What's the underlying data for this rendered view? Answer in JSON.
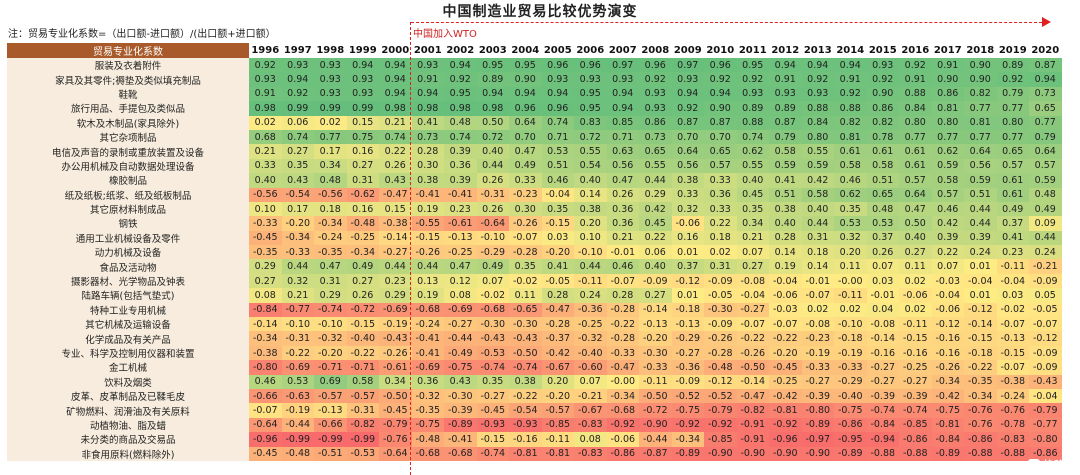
{
  "title": "中国制造业贸易比较优势演变",
  "note": "注：贸易专业化系数=（出口额-进口额）/(出口额+进口额）",
  "wto_label": "中国加入WTO",
  "watermark": "格隆汇",
  "header": {
    "category": "贸易专业化系数",
    "years": [
      "1996",
      "1997",
      "1998",
      "1999",
      "2000",
      "2001",
      "2002",
      "2003",
      "2004",
      "2005",
      "2006",
      "2007",
      "2008",
      "2009",
      "2010",
      "2011",
      "2012",
      "2013",
      "2014",
      "2015",
      "2016",
      "2017",
      "2018",
      "2019",
      "2020"
    ]
  },
  "rows": [
    {
      "name": "服装及衣着附件",
      "values": [
        "0.92",
        "0.93",
        "0.93",
        "0.94",
        "0.94",
        "0.93",
        "0.94",
        "0.95",
        "0.95",
        "0.96",
        "0.96",
        "0.97",
        "0.96",
        "0.97",
        "0.96",
        "0.95",
        "0.94",
        "0.94",
        "0.94",
        "0.93",
        "0.92",
        "0.91",
        "0.90",
        "0.89",
        "0.87"
      ]
    },
    {
      "name": "家具及其零件;褥垫及类似填充制品",
      "values": [
        "0.93",
        "0.94",
        "0.93",
        "0.93",
        "0.94",
        "0.91",
        "0.92",
        "0.89",
        "0.90",
        "0.93",
        "0.93",
        "0.93",
        "0.92",
        "0.93",
        "0.92",
        "0.92",
        "0.91",
        "0.92",
        "0.91",
        "0.92",
        "0.91",
        "0.90",
        "0.90",
        "0.92",
        "0.94"
      ]
    },
    {
      "name": "鞋靴",
      "values": [
        "0.91",
        "0.92",
        "0.93",
        "0.93",
        "0.94",
        "0.94",
        "0.95",
        "0.94",
        "0.94",
        "0.94",
        "0.95",
        "0.94",
        "0.93",
        "0.94",
        "0.94",
        "0.93",
        "0.93",
        "0.93",
        "0.92",
        "0.90",
        "0.88",
        "0.86",
        "0.82",
        "0.79",
        "0.73"
      ]
    },
    {
      "name": "旅行用品、手提包及类似品",
      "values": [
        "0.98",
        "0.99",
        "0.99",
        "0.99",
        "0.98",
        "0.98",
        "0.98",
        "0.98",
        "0.96",
        "0.96",
        "0.95",
        "0.94",
        "0.93",
        "0.92",
        "0.90",
        "0.89",
        "0.89",
        "0.88",
        "0.88",
        "0.86",
        "0.84",
        "0.81",
        "0.77",
        "0.77",
        "0.65"
      ]
    },
    {
      "name": "软木及木制品(家具除外)",
      "values": [
        "0.02",
        "0.06",
        "0.02",
        "0.15",
        "0.21",
        "0.41",
        "0.48",
        "0.50",
        "0.64",
        "0.74",
        "0.83",
        "0.85",
        "0.86",
        "0.87",
        "0.87",
        "0.88",
        "0.87",
        "0.84",
        "0.82",
        "0.82",
        "0.80",
        "0.80",
        "0.81",
        "0.80",
        "0.77"
      ]
    },
    {
      "name": "其它杂项制品",
      "values": [
        "0.68",
        "0.74",
        "0.77",
        "0.75",
        "0.74",
        "0.73",
        "0.74",
        "0.72",
        "0.70",
        "0.71",
        "0.72",
        "0.71",
        "0.73",
        "0.70",
        "0.70",
        "0.74",
        "0.79",
        "0.80",
        "0.81",
        "0.78",
        "0.77",
        "0.77",
        "0.77",
        "0.77",
        "0.79"
      ]
    },
    {
      "name": "电信及声音的录制或重放装置及设备",
      "values": [
        "0.21",
        "0.27",
        "0.17",
        "0.16",
        "0.22",
        "0.28",
        "0.39",
        "0.40",
        "0.47",
        "0.53",
        "0.55",
        "0.63",
        "0.65",
        "0.64",
        "0.65",
        "0.62",
        "0.58",
        "0.55",
        "0.61",
        "0.61",
        "0.61",
        "0.62",
        "0.64",
        "0.65",
        "0.64"
      ]
    },
    {
      "name": "办公用机械及自动数据处理设备",
      "values": [
        "0.33",
        "0.35",
        "0.34",
        "0.27",
        "0.26",
        "0.30",
        "0.36",
        "0.44",
        "0.49",
        "0.51",
        "0.54",
        "0.56",
        "0.55",
        "0.56",
        "0.57",
        "0.55",
        "0.59",
        "0.59",
        "0.58",
        "0.58",
        "0.61",
        "0.59",
        "0.56",
        "0.57",
        "0.57"
      ]
    },
    {
      "name": "橡胶制品",
      "values": [
        "0.40",
        "0.43",
        "0.48",
        "0.31",
        "0.43",
        "0.38",
        "0.39",
        "0.26",
        "0.33",
        "0.46",
        "0.40",
        "0.47",
        "0.44",
        "0.38",
        "0.33",
        "0.40",
        "0.41",
        "0.42",
        "0.46",
        "0.51",
        "0.57",
        "0.58",
        "0.59",
        "0.61",
        "0.59"
      ]
    },
    {
      "name": "纸及纸板;纸浆、纸及纸板制品",
      "values": [
        "-0.56",
        "-0.54",
        "-0.56",
        "-0.62",
        "-0.47",
        "-0.41",
        "-0.41",
        "-0.31",
        "-0.23",
        "-0.04",
        "0.14",
        "0.26",
        "0.29",
        "0.33",
        "0.36",
        "0.45",
        "0.51",
        "0.58",
        "0.62",
        "0.65",
        "0.64",
        "0.57",
        "0.51",
        "0.61",
        "0.48"
      ]
    },
    {
      "name": "其它原材料制成品",
      "values": [
        "0.10",
        "0.17",
        "0.18",
        "0.16",
        "0.15",
        "0.19",
        "0.23",
        "0.26",
        "0.30",
        "0.35",
        "0.38",
        "0.36",
        "0.42",
        "0.32",
        "0.33",
        "0.35",
        "0.38",
        "0.40",
        "0.35",
        "0.48",
        "0.47",
        "0.46",
        "0.44",
        "0.49",
        "0.49"
      ]
    },
    {
      "name": "钢铁",
      "values": [
        "-0.33",
        "-0.20",
        "-0.34",
        "-0.48",
        "-0.38",
        "-0.55",
        "-0.61",
        "-0.64",
        "-0.26",
        "-0.15",
        "0.20",
        "0.36",
        "0.45",
        "-0.06",
        "0.22",
        "0.34",
        "0.40",
        "0.44",
        "0.53",
        "0.53",
        "0.50",
        "0.42",
        "0.44",
        "0.37",
        "0.09"
      ]
    },
    {
      "name": "通用工业机械设备及零件",
      "values": [
        "-0.45",
        "-0.34",
        "-0.24",
        "-0.25",
        "-0.14",
        "-0.15",
        "-0.13",
        "-0.10",
        "-0.07",
        "0.03",
        "0.10",
        "0.21",
        "0.22",
        "0.16",
        "0.18",
        "0.21",
        "0.28",
        "0.31",
        "0.32",
        "0.37",
        "0.40",
        "0.39",
        "0.39",
        "0.41",
        "0.44"
      ]
    },
    {
      "name": "动力机械及设备",
      "values": [
        "-0.35",
        "-0.33",
        "-0.35",
        "-0.34",
        "-0.27",
        "-0.26",
        "-0.25",
        "-0.29",
        "-0.28",
        "-0.20",
        "-0.10",
        "-0.01",
        "0.06",
        "0.01",
        "0.02",
        "0.07",
        "0.14",
        "0.18",
        "0.20",
        "0.26",
        "0.27",
        "0.22",
        "0.24",
        "0.23",
        "0.24"
      ]
    },
    {
      "name": "食品及活动物",
      "values": [
        "0.29",
        "0.44",
        "0.47",
        "0.49",
        "0.44",
        "0.44",
        "0.47",
        "0.49",
        "0.35",
        "0.41",
        "0.44",
        "0.46",
        "0.40",
        "0.37",
        "0.31",
        "0.27",
        "0.19",
        "0.14",
        "0.11",
        "0.07",
        "0.11",
        "0.07",
        "0.01",
        "-0.11",
        "-0.21"
      ]
    },
    {
      "name": "摄影器材、光学物品及钟表",
      "values": [
        "0.27",
        "0.32",
        "0.31",
        "0.27",
        "0.23",
        "0.13",
        "0.12",
        "0.07",
        "-0.02",
        "-0.05",
        "-0.11",
        "-0.07",
        "-0.09",
        "-0.12",
        "-0.09",
        "-0.08",
        "-0.04",
        "-0.01",
        "-0.00",
        "0.03",
        "0.02",
        "-0.03",
        "-0.04",
        "-0.04",
        "-0.09"
      ]
    },
    {
      "name": "陆路车辆(包括气垫式)",
      "values": [
        "0.08",
        "0.21",
        "0.29",
        "0.26",
        "0.29",
        "0.19",
        "0.08",
        "-0.02",
        "0.11",
        "0.28",
        "0.24",
        "0.28",
        "0.27",
        "0.01",
        "-0.05",
        "-0.04",
        "-0.06",
        "-0.07",
        "-0.11",
        "-0.01",
        "-0.06",
        "-0.04",
        "0.01",
        "0.03",
        "0.05"
      ]
    },
    {
      "name": "特种工业专用机械",
      "values": [
        "-0.84",
        "-0.77",
        "-0.74",
        "-0.72",
        "-0.69",
        "-0.68",
        "-0.69",
        "-0.68",
        "-0.65",
        "-0.47",
        "-0.36",
        "-0.28",
        "-0.14",
        "-0.18",
        "-0.30",
        "-0.27",
        "-0.03",
        "0.02",
        "0.02",
        "0.04",
        "0.02",
        "-0.06",
        "-0.12",
        "-0.02",
        "-0.05"
      ]
    },
    {
      "name": "其它机械及运输设备",
      "values": [
        "-0.14",
        "-0.10",
        "-0.10",
        "-0.15",
        "-0.19",
        "-0.24",
        "-0.27",
        "-0.30",
        "-0.30",
        "-0.28",
        "-0.25",
        "-0.22",
        "-0.13",
        "-0.13",
        "-0.09",
        "-0.07",
        "-0.07",
        "-0.08",
        "-0.10",
        "-0.08",
        "-0.11",
        "-0.12",
        "-0.14",
        "-0.07",
        "-0.07"
      ]
    },
    {
      "name": "化学成品及有关产品",
      "values": [
        "-0.34",
        "-0.31",
        "-0.32",
        "-0.40",
        "-0.43",
        "-0.41",
        "-0.44",
        "-0.43",
        "-0.43",
        "-0.37",
        "-0.32",
        "-0.28",
        "-0.20",
        "-0.29",
        "-0.26",
        "-0.22",
        "-0.22",
        "-0.23",
        "-0.18",
        "-0.14",
        "-0.15",
        "-0.16",
        "-0.15",
        "-0.13",
        "-0.12"
      ]
    },
    {
      "name": "专业、科学及控制用仪器和装置",
      "values": [
        "-0.38",
        "-0.22",
        "-0.20",
        "-0.22",
        "-0.26",
        "-0.41",
        "-0.49",
        "-0.53",
        "-0.50",
        "-0.42",
        "-0.40",
        "-0.33",
        "-0.30",
        "-0.27",
        "-0.28",
        "-0.26",
        "-0.20",
        "-0.19",
        "-0.19",
        "-0.16",
        "-0.16",
        "-0.16",
        "-0.18",
        "-0.15",
        "-0.09"
      ]
    },
    {
      "name": "金工机械",
      "values": [
        "-0.80",
        "-0.69",
        "-0.71",
        "-0.71",
        "-0.61",
        "-0.69",
        "-0.75",
        "-0.74",
        "-0.74",
        "-0.67",
        "-0.60",
        "-0.47",
        "-0.33",
        "-0.36",
        "-0.48",
        "-0.50",
        "-0.45",
        "-0.33",
        "-0.33",
        "-0.27",
        "-0.25",
        "-0.26",
        "-0.22",
        "-0.07",
        "-0.09"
      ]
    },
    {
      "name": "饮料及烟类",
      "values": [
        "0.46",
        "0.53",
        "0.69",
        "0.58",
        "0.34",
        "0.36",
        "0.43",
        "0.35",
        "0.38",
        "0.20",
        "0.07",
        "-0.00",
        "-0.11",
        "-0.09",
        "-0.12",
        "-0.14",
        "-0.25",
        "-0.27",
        "-0.29",
        "-0.27",
        "-0.27",
        "-0.34",
        "-0.35",
        "-0.38",
        "-0.43"
      ]
    },
    {
      "name": "皮革、皮革制品及已鞣毛皮",
      "values": [
        "-0.66",
        "-0.63",
        "-0.57",
        "-0.57",
        "-0.50",
        "-0.32",
        "-0.30",
        "-0.27",
        "-0.22",
        "-0.20",
        "-0.21",
        "-0.34",
        "-0.50",
        "-0.52",
        "-0.52",
        "-0.47",
        "-0.42",
        "-0.39",
        "-0.40",
        "-0.39",
        "-0.39",
        "-0.42",
        "-0.34",
        "-0.24",
        "-0.04"
      ]
    },
    {
      "name": "矿物燃料、润滑油及有关原料",
      "values": [
        "-0.07",
        "-0.19",
        "-0.13",
        "-0.31",
        "-0.45",
        "-0.35",
        "-0.39",
        "-0.45",
        "-0.54",
        "-0.57",
        "-0.67",
        "-0.68",
        "-0.72",
        "-0.75",
        "-0.79",
        "-0.82",
        "-0.81",
        "-0.80",
        "-0.75",
        "-0.74",
        "-0.74",
        "-0.75",
        "-0.76",
        "-0.76",
        "-0.79"
      ]
    },
    {
      "name": "动植物油、脂及蜡",
      "values": [
        "-0.64",
        "-0.44",
        "-0.66",
        "-0.82",
        "-0.79",
        "-0.75",
        "-0.89",
        "-0.93",
        "-0.93",
        "-0.85",
        "-0.83",
        "-0.92",
        "-0.90",
        "-0.92",
        "-0.92",
        "-0.91",
        "-0.92",
        "-0.89",
        "-0.86",
        "-0.84",
        "-0.85",
        "-0.81",
        "-0.76",
        "-0.78",
        "-0.77"
      ]
    },
    {
      "name": "未分类的商品及交易品",
      "values": [
        "-0.96",
        "-0.99",
        "-0.99",
        "-0.99",
        "-0.76",
        "-0.48",
        "-0.41",
        "-0.15",
        "-0.16",
        "-0.11",
        "0.08",
        "-0.06",
        "-0.44",
        "-0.34",
        "-0.85",
        "-0.91",
        "-0.96",
        "-0.97",
        "-0.95",
        "-0.94",
        "-0.86",
        "-0.84",
        "-0.86",
        "-0.83",
        "-0.80"
      ]
    },
    {
      "name": "非食用原料(燃料除外)",
      "values": [
        "-0.45",
        "-0.48",
        "-0.51",
        "-0.53",
        "-0.64",
        "-0.68",
        "-0.68",
        "-0.74",
        "-0.81",
        "-0.81",
        "-0.83",
        "-0.86",
        "-0.87",
        "-0.89",
        "-0.90",
        "-0.90",
        "-0.90",
        "-0.90",
        "-0.89",
        "-0.88",
        "-0.88",
        "-0.89",
        "-0.88",
        "-0.88",
        "-0.86"
      ]
    }
  ]
}
